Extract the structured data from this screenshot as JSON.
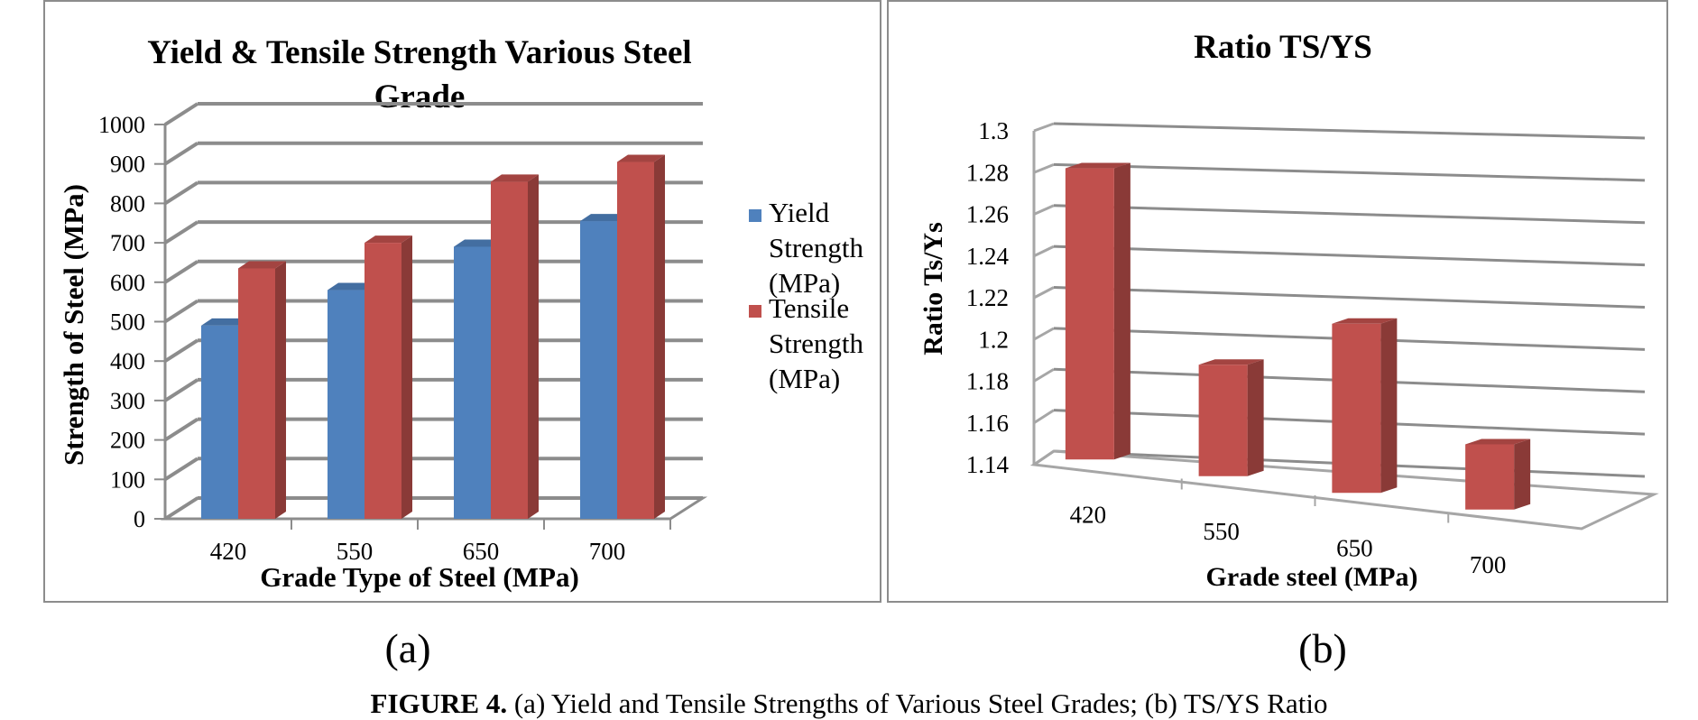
{
  "figure": {
    "label_a": "(a)",
    "label_b": "(b)",
    "caption_bold": "FIGURE 4.",
    "caption_text": "(a) Yield and Tensile Strengths of Various Steel Grades; (b) TS/YS Ratio"
  },
  "chart_data": [
    {
      "type": "bar",
      "title": "Yield & Tensile Strength Various Steel Grade",
      "title_lines": [
        "Yield & Tensile Strength Various Steel",
        "Grade"
      ],
      "xlabel": "Grade Type of Steel (MPa)",
      "ylabel": "Strength of Steel (MPa)",
      "categories": [
        "420",
        "550",
        "650",
        "700"
      ],
      "series": [
        {
          "name": "Yield Strength (MPa)",
          "legend_lines": [
            "Yield",
            "Strength",
            "(MPa)"
          ],
          "color": "#4f81bd",
          "values": [
            490,
            580,
            690,
            755
          ]
        },
        {
          "name": "Tensile Strength (MPa)",
          "legend_lines": [
            "Tensile",
            "Strength",
            "(MPa)"
          ],
          "color": "#c0504d",
          "values": [
            635,
            700,
            855,
            905
          ]
        }
      ],
      "ylim": [
        0,
        1000
      ],
      "yticks": [
        "0",
        "100",
        "200",
        "300",
        "400",
        "500",
        "600",
        "700",
        "800",
        "900",
        "1000"
      ],
      "grid": true,
      "legend": "right"
    },
    {
      "type": "bar",
      "title": "Ratio TS/YS",
      "xlabel": "Grade steel (MPa)",
      "ylabel": "Ratio Ts/Ys",
      "categories": [
        "420",
        "550",
        "650",
        "700"
      ],
      "series": [
        {
          "color": "#c0504d",
          "values": [
            1.286,
            1.192,
            1.216,
            1.167
          ]
        }
      ],
      "ylim": [
        1.14,
        1.3
      ],
      "yticks": [
        "1.14",
        "1.16",
        "1.18",
        "1.2",
        "1.22",
        "1.24",
        "1.26",
        "1.28",
        "1.3"
      ],
      "grid": true,
      "legend": "none"
    }
  ]
}
